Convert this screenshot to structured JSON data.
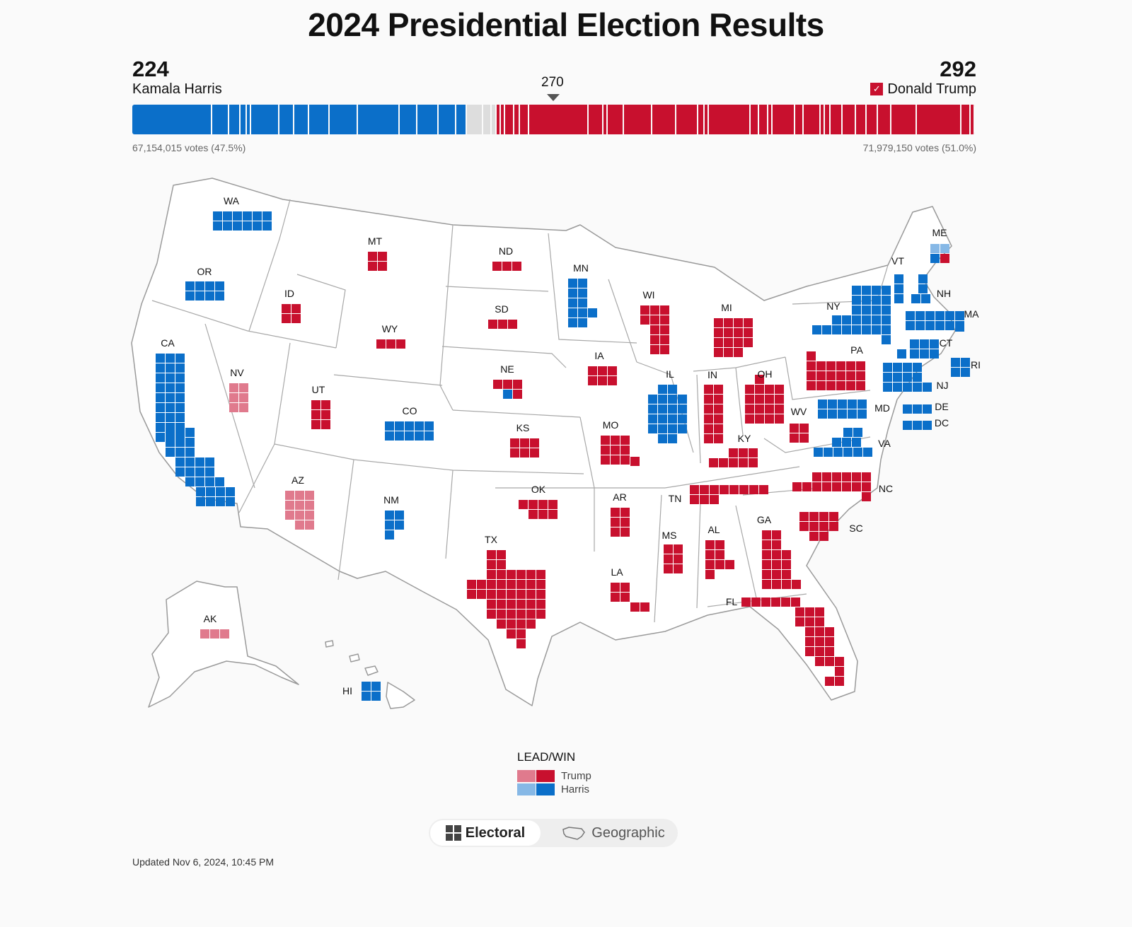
{
  "title": "2024 Presidential Election Results",
  "harris": {
    "name": "Kamala Harris",
    "electoral_votes": "224",
    "popular_votes": "67,154,015 votes (47.5%)"
  },
  "trump": {
    "name": "Donald Trump",
    "electoral_votes": "292",
    "popular_votes": "71,979,150 votes (51.0%)",
    "winner_check": "✓"
  },
  "threshold": "270",
  "colors": {
    "trump_win": "#c8102e",
    "trump_lead": "#e07a8d",
    "harris_win": "#0b6fc9",
    "harris_lead": "#86b8e6",
    "uncalled": "#dddddd"
  },
  "ev_bar": {
    "total": 538,
    "segments": [
      {
        "v": 54,
        "c": "harris_win"
      },
      {
        "v": 11,
        "c": "harris_win"
      },
      {
        "v": 8,
        "c": "harris_win"
      },
      {
        "v": 4,
        "c": "harris_win"
      },
      {
        "v": 3,
        "c": "harris_win"
      },
      {
        "v": 19,
        "c": "harris_win"
      },
      {
        "v": 10,
        "c": "harris_win"
      },
      {
        "v": 10,
        "c": "harris_win"
      },
      {
        "v": 14,
        "c": "harris_win"
      },
      {
        "v": 19,
        "c": "harris_win"
      },
      {
        "v": 28,
        "c": "harris_win"
      },
      {
        "v": 12,
        "c": "harris_win"
      },
      {
        "v": 14,
        "c": "harris_win"
      },
      {
        "v": 12,
        "c": "harris_win"
      },
      {
        "v": 7,
        "c": "harris_win"
      },
      {
        "v": 11,
        "c": "uncalled"
      },
      {
        "v": 6,
        "c": "uncalled"
      },
      {
        "v": 3,
        "c": "uncalled"
      },
      {
        "v": 3,
        "c": "trump_win"
      },
      {
        "v": 3,
        "c": "trump_win"
      },
      {
        "v": 6,
        "c": "trump_win"
      },
      {
        "v": 4,
        "c": "trump_win"
      },
      {
        "v": 6,
        "c": "trump_win"
      },
      {
        "v": 40,
        "c": "trump_win"
      },
      {
        "v": 10,
        "c": "trump_win"
      },
      {
        "v": 3,
        "c": "trump_win"
      },
      {
        "v": 11,
        "c": "trump_win"
      },
      {
        "v": 19,
        "c": "trump_win"
      },
      {
        "v": 16,
        "c": "trump_win"
      },
      {
        "v": 15,
        "c": "trump_win"
      },
      {
        "v": 4,
        "c": "trump_win"
      },
      {
        "v": 3,
        "c": "trump_win"
      },
      {
        "v": 28,
        "c": "trump_win"
      },
      {
        "v": 6,
        "c": "trump_win"
      },
      {
        "v": 6,
        "c": "trump_win"
      },
      {
        "v": 3,
        "c": "trump_win"
      },
      {
        "v": 15,
        "c": "trump_win"
      },
      {
        "v": 6,
        "c": "trump_win"
      },
      {
        "v": 11,
        "c": "trump_win"
      },
      {
        "v": 3,
        "c": "trump_win"
      },
      {
        "v": 4,
        "c": "trump_win"
      },
      {
        "v": 8,
        "c": "trump_win"
      },
      {
        "v": 9,
        "c": "trump_win"
      },
      {
        "v": 7,
        "c": "trump_win"
      },
      {
        "v": 8,
        "c": "trump_win"
      },
      {
        "v": 9,
        "c": "trump_win"
      },
      {
        "v": 17,
        "c": "trump_win"
      },
      {
        "v": 30,
        "c": "trump_win"
      },
      {
        "v": 6,
        "c": "trump_win"
      },
      {
        "v": 3,
        "c": "trump_win"
      }
    ]
  },
  "states": [
    {
      "abbr": "WA",
      "ev": 12,
      "c": "harris_win"
    },
    {
      "abbr": "OR",
      "ev": 8,
      "c": "harris_win"
    },
    {
      "abbr": "CA",
      "ev": 54,
      "c": "harris_win"
    },
    {
      "abbr": "NV",
      "ev": 6,
      "c": "trump_lead"
    },
    {
      "abbr": "ID",
      "ev": 4,
      "c": "trump_win"
    },
    {
      "abbr": "MT",
      "ev": 4,
      "c": "trump_win"
    },
    {
      "abbr": "WY",
      "ev": 3,
      "c": "trump_win"
    },
    {
      "abbr": "UT",
      "ev": 6,
      "c": "trump_win"
    },
    {
      "abbr": "AZ",
      "ev": 11,
      "c": "trump_lead"
    },
    {
      "abbr": "CO",
      "ev": 10,
      "c": "harris_win"
    },
    {
      "abbr": "NM",
      "ev": 5,
      "c": "harris_win"
    },
    {
      "abbr": "ND",
      "ev": 3,
      "c": "trump_win"
    },
    {
      "abbr": "SD",
      "ev": 3,
      "c": "trump_win"
    },
    {
      "abbr": "NE",
      "ev": 5,
      "c": "trump_win",
      "split": {
        "harris_win": 1
      }
    },
    {
      "abbr": "KS",
      "ev": 6,
      "c": "trump_win"
    },
    {
      "abbr": "OK",
      "ev": 7,
      "c": "trump_win"
    },
    {
      "abbr": "TX",
      "ev": 40,
      "c": "trump_win"
    },
    {
      "abbr": "MN",
      "ev": 10,
      "c": "harris_win"
    },
    {
      "abbr": "IA",
      "ev": 6,
      "c": "trump_win"
    },
    {
      "abbr": "MO",
      "ev": 10,
      "c": "trump_win"
    },
    {
      "abbr": "AR",
      "ev": 6,
      "c": "trump_win"
    },
    {
      "abbr": "LA",
      "ev": 8,
      "c": "trump_win"
    },
    {
      "abbr": "WI",
      "ev": 10,
      "c": "trump_win"
    },
    {
      "abbr": "IL",
      "ev": 19,
      "c": "harris_win"
    },
    {
      "abbr": "MI",
      "ev": 15,
      "c": "trump_win"
    },
    {
      "abbr": "IN",
      "ev": 11,
      "c": "trump_win"
    },
    {
      "abbr": "OH",
      "ev": 17,
      "c": "trump_win"
    },
    {
      "abbr": "KY",
      "ev": 8,
      "c": "trump_win"
    },
    {
      "abbr": "TN",
      "ev": 11,
      "c": "trump_win"
    },
    {
      "abbr": "MS",
      "ev": 6,
      "c": "trump_win"
    },
    {
      "abbr": "AL",
      "ev": 9,
      "c": "trump_win"
    },
    {
      "abbr": "GA",
      "ev": 16,
      "c": "trump_win"
    },
    {
      "abbr": "FL",
      "ev": 30,
      "c": "trump_win"
    },
    {
      "abbr": "SC",
      "ev": 9,
      "c": "trump_win"
    },
    {
      "abbr": "NC",
      "ev": 16,
      "c": "trump_win"
    },
    {
      "abbr": "VA",
      "ev": 13,
      "c": "harris_win"
    },
    {
      "abbr": "WV",
      "ev": 4,
      "c": "trump_win"
    },
    {
      "abbr": "PA",
      "ev": 19,
      "c": "trump_win"
    },
    {
      "abbr": "MD",
      "ev": 10,
      "c": "harris_win"
    },
    {
      "abbr": "DE",
      "ev": 3,
      "c": "harris_win"
    },
    {
      "abbr": "DC",
      "ev": 3,
      "c": "harris_win"
    },
    {
      "abbr": "NJ",
      "ev": 14,
      "c": "harris_win"
    },
    {
      "abbr": "NY",
      "ev": 28,
      "c": "harris_win"
    },
    {
      "abbr": "CT",
      "ev": 7,
      "c": "harris_win"
    },
    {
      "abbr": "RI",
      "ev": 4,
      "c": "harris_win"
    },
    {
      "abbr": "MA",
      "ev": 11,
      "c": "harris_win"
    },
    {
      "abbr": "VT",
      "ev": 3,
      "c": "harris_win"
    },
    {
      "abbr": "NH",
      "ev": 4,
      "c": "harris_win"
    },
    {
      "abbr": "ME",
      "ev": 4,
      "c": "harris_win",
      "split": {
        "harris_lead": 2,
        "trump_win": 1
      }
    },
    {
      "abbr": "AK",
      "ev": 3,
      "c": "trump_lead"
    },
    {
      "abbr": "HI",
      "ev": 4,
      "c": "harris_win"
    }
  ],
  "legend": {
    "title": "LEAD/WIN",
    "trump_label": "Trump",
    "harris_label": "Harris"
  },
  "toggle": {
    "electoral_label": "Electoral",
    "geographic_label": "Geographic",
    "selected": "Electoral"
  },
  "updated": "Updated Nov 6, 2024, 10:45 PM"
}
